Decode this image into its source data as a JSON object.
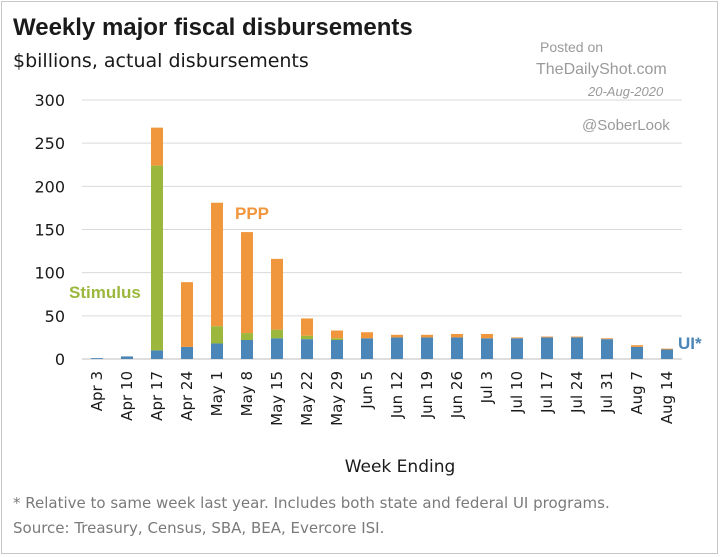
{
  "chart_data": {
    "type": "bar",
    "stacked": true,
    "title": "Weekly major fiscal disbursements",
    "subtitle": "$billions, actual disbursements",
    "xlabel": "Week Ending",
    "ylabel": "",
    "ylim": [
      0,
      300
    ],
    "yticks": [
      0,
      50,
      100,
      150,
      200,
      250,
      300
    ],
    "grid": true,
    "categories": [
      "Apr 3",
      "Apr 10",
      "Apr 17",
      "Apr 24",
      "May 1",
      "May 8",
      "May 15",
      "May 22",
      "May 29",
      "Jun 5",
      "Jun 12",
      "Jun 19",
      "Jun 26",
      "Jul 3",
      "Jul 10",
      "Jul 17",
      "Jul 24",
      "Jul 31",
      "Aug 7",
      "Aug 14"
    ],
    "series": [
      {
        "name": "UI*",
        "color": "#4a86b8",
        "values": [
          1,
          3,
          10,
          14,
          18,
          22,
          24,
          23,
          22,
          24,
          25,
          25,
          25,
          24,
          24,
          25,
          25,
          23,
          14,
          11
        ]
      },
      {
        "name": "Stimulus",
        "color": "#9bb83d",
        "values": [
          0,
          0,
          214,
          0,
          20,
          8,
          10,
          4,
          2,
          0,
          0,
          0,
          0,
          0,
          0,
          0,
          0,
          0,
          0,
          0
        ]
      },
      {
        "name": "PPP",
        "color": "#f0963c",
        "values": [
          0,
          0,
          44,
          75,
          143,
          117,
          82,
          20,
          9,
          7,
          3,
          3,
          4,
          5,
          1,
          1,
          1,
          1,
          2,
          1
        ]
      }
    ],
    "annotations": [
      {
        "text": "Stimulus",
        "color": "#9bb83d"
      },
      {
        "text": "PPP",
        "color": "#f0963c"
      },
      {
        "text": "UI*",
        "color": "#4a86b8"
      }
    ]
  },
  "watermark": {
    "line1": "Posted on",
    "line2": "TheDailyShot.com",
    "date": "20-Aug-2020",
    "handle": "@SoberLook"
  },
  "footnotes": {
    "note": "* Relative to same week last year. Includes both state and federal UI programs.",
    "source": "Source: Treasury, Census, SBA, BEA, Evercore ISI."
  }
}
